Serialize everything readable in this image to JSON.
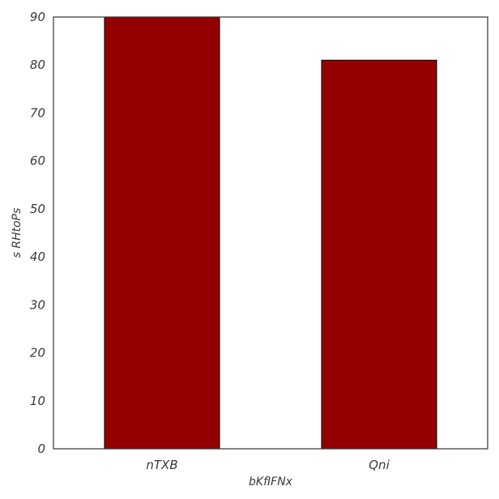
{
  "chart_data": {
    "type": "bar",
    "title": "",
    "xlabel": "bKfIFNx",
    "ylabel": "s RHtoPs",
    "categories": [
      "nTXB",
      "Qni"
    ],
    "series": [
      {
        "values": [
          90,
          81
        ],
        "color": "#940000"
      }
    ],
    "ylim": [
      0,
      90
    ],
    "yticks": [
      0,
      10,
      20,
      30,
      40,
      50,
      60,
      70,
      80,
      90
    ],
    "grid": false,
    "legend": "none",
    "bar_edge_color": "#000000",
    "axis_color": "#333333"
  }
}
